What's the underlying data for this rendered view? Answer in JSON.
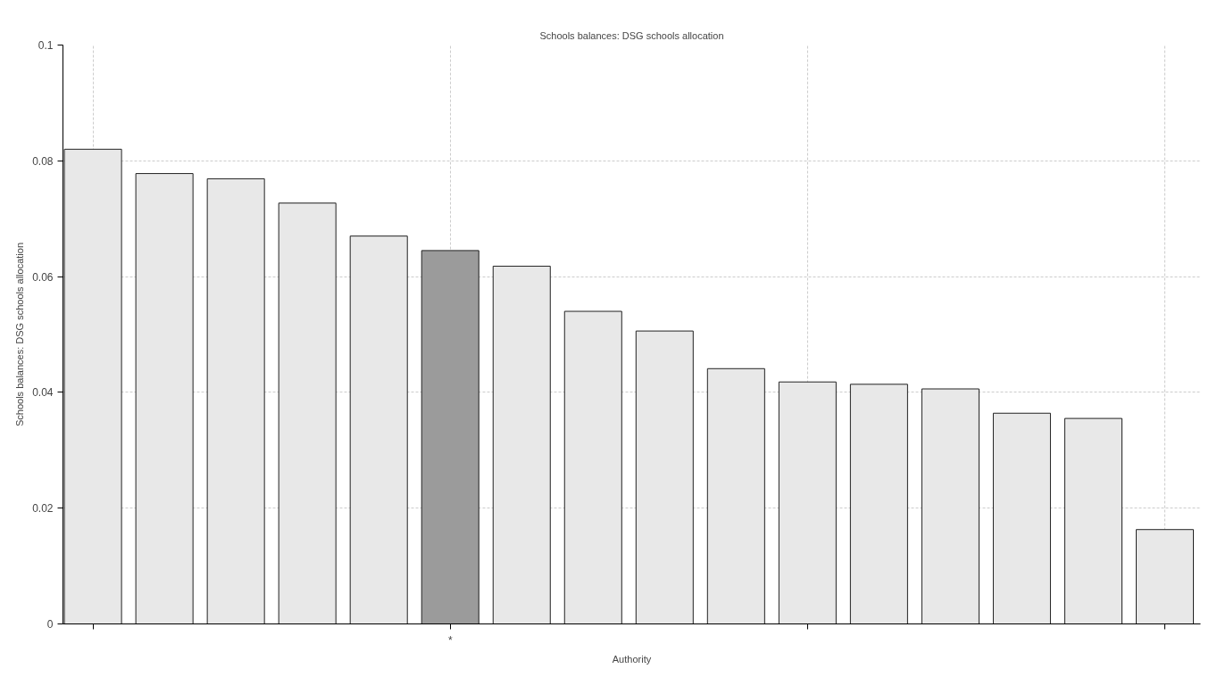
{
  "chart_data": {
    "type": "bar",
    "title": "Schools balances: DSG schools allocation",
    "xlabel": "Authority",
    "ylabel": "Schools balances: DSG schools allocation",
    "categories": [
      null,
      null,
      null,
      null,
      null,
      "*",
      null,
      null,
      null,
      null,
      null,
      null,
      null,
      null,
      null,
      null
    ],
    "values": [
      0.082,
      0.0778,
      0.0769,
      0.0727,
      0.067,
      0.0645,
      0.0618,
      0.054,
      0.0506,
      0.0441,
      0.0418,
      0.0414,
      0.0406,
      0.0364,
      0.0355,
      0.0163
    ],
    "colors": [
      "#e8e8e8",
      "#e8e8e8",
      "#e8e8e8",
      "#e8e8e8",
      "#e8e8e8",
      "#9b9b9b",
      "#e8e8e8",
      "#e8e8e8",
      "#e8e8e8",
      "#e8e8e8",
      "#e8e8e8",
      "#e8e8e8",
      "#e8e8e8",
      "#e8e8e8",
      "#e8e8e8",
      "#e8e8e8"
    ],
    "ylim": [
      0,
      0.1
    ],
    "yticks": [
      0,
      0.02,
      0.04,
      0.06,
      0.08,
      0.1
    ],
    "grid": true
  }
}
